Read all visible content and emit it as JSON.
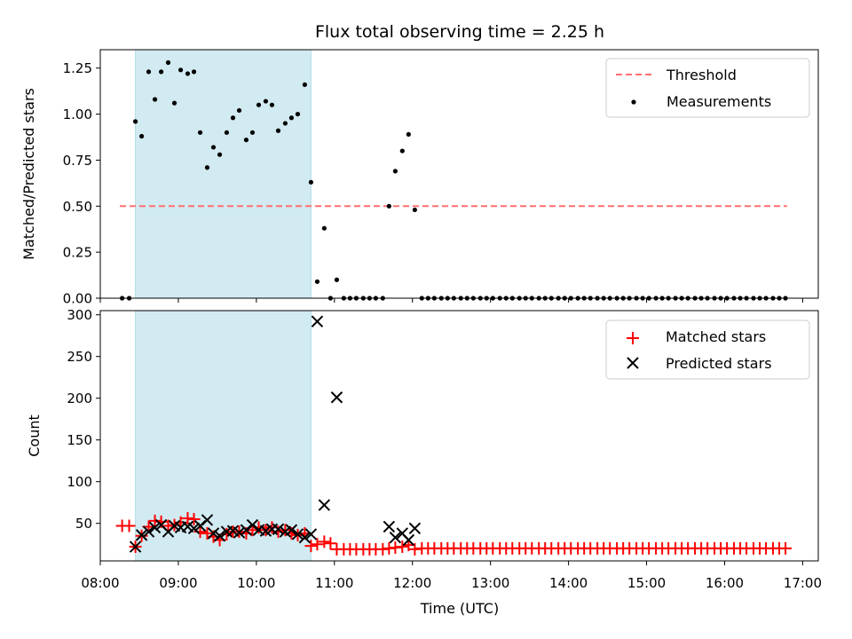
{
  "title": "Flux total observing time = 2.25 h",
  "colors": {
    "threshold": "#ff6f6f",
    "measurement": "#000000",
    "matched": "#ff0000",
    "predicted": "#000000",
    "shade": "#add8e6"
  },
  "chart_data": [
    {
      "type": "scatter",
      "panel": "top",
      "ylabel": "Matched/Predicted stars",
      "xlim": [
        8.0,
        17.2
      ],
      "ylim": [
        0,
        1.35
      ],
      "yticks": [
        0.0,
        0.25,
        0.5,
        0.75,
        1.0,
        1.25
      ],
      "ytick_labels": [
        "0.00",
        "0.25",
        "0.50",
        "0.75",
        "1.00",
        "1.25"
      ],
      "shaded_span": [
        8.45,
        10.7
      ],
      "legend": {
        "position": "top-right",
        "entries": [
          "Threshold",
          "Measurements"
        ]
      },
      "threshold": {
        "name": "Threshold",
        "value": 0.5,
        "x_range": [
          8.25,
          16.8
        ]
      },
      "series": [
        {
          "name": "Measurements",
          "points": [
            [
              8.28,
              0
            ],
            [
              8.37,
              0
            ],
            [
              8.45,
              0.96
            ],
            [
              8.53,
              0.88
            ],
            [
              8.62,
              1.23
            ],
            [
              8.7,
              1.08
            ],
            [
              8.78,
              1.23
            ],
            [
              8.87,
              1.28
            ],
            [
              8.95,
              1.06
            ],
            [
              9.03,
              1.24
            ],
            [
              9.12,
              1.22
            ],
            [
              9.2,
              1.23
            ],
            [
              9.28,
              0.9
            ],
            [
              9.37,
              0.71
            ],
            [
              9.45,
              0.82
            ],
            [
              9.53,
              0.78
            ],
            [
              9.62,
              0.9
            ],
            [
              9.7,
              0.98
            ],
            [
              9.78,
              1.02
            ],
            [
              9.87,
              0.86
            ],
            [
              9.95,
              0.9
            ],
            [
              10.03,
              1.05
            ],
            [
              10.12,
              1.07
            ],
            [
              10.2,
              1.05
            ],
            [
              10.28,
              0.91
            ],
            [
              10.37,
              0.95
            ],
            [
              10.45,
              0.98
            ],
            [
              10.53,
              1.0
            ],
            [
              10.62,
              1.16
            ],
            [
              10.7,
              0.63
            ],
            [
              10.78,
              0.09
            ],
            [
              10.87,
              0.38
            ],
            [
              10.95,
              0
            ],
            [
              11.03,
              0.1
            ],
            [
              11.12,
              0
            ],
            [
              11.2,
              0
            ],
            [
              11.28,
              0
            ],
            [
              11.37,
              0
            ],
            [
              11.45,
              0
            ],
            [
              11.53,
              0
            ],
            [
              11.62,
              0
            ],
            [
              11.7,
              0.5
            ],
            [
              11.78,
              0.69
            ],
            [
              11.87,
              0.8
            ],
            [
              11.95,
              0.89
            ],
            [
              12.03,
              0.48
            ],
            [
              12.12,
              0
            ],
            [
              12.2,
              0
            ],
            [
              12.28,
              0
            ],
            [
              12.37,
              0
            ],
            [
              12.45,
              0
            ],
            [
              12.53,
              0
            ],
            [
              12.62,
              0
            ],
            [
              12.7,
              0
            ],
            [
              12.78,
              0
            ],
            [
              12.87,
              0
            ],
            [
              12.95,
              0
            ],
            [
              13.03,
              0
            ],
            [
              13.12,
              0
            ],
            [
              13.2,
              0
            ],
            [
              13.28,
              0
            ],
            [
              13.37,
              0
            ],
            [
              13.45,
              0
            ],
            [
              13.53,
              0
            ],
            [
              13.62,
              0
            ],
            [
              13.7,
              0
            ],
            [
              13.78,
              0
            ],
            [
              13.87,
              0
            ],
            [
              13.95,
              0
            ],
            [
              14.03,
              0
            ],
            [
              14.12,
              0
            ],
            [
              14.2,
              0
            ],
            [
              14.28,
              0
            ],
            [
              14.37,
              0
            ],
            [
              14.45,
              0
            ],
            [
              14.53,
              0
            ],
            [
              14.62,
              0
            ],
            [
              14.7,
              0
            ],
            [
              14.78,
              0
            ],
            [
              14.87,
              0
            ],
            [
              14.95,
              0
            ],
            [
              15.03,
              0
            ],
            [
              15.12,
              0
            ],
            [
              15.2,
              0
            ],
            [
              15.28,
              0
            ],
            [
              15.37,
              0
            ],
            [
              15.45,
              0
            ],
            [
              15.53,
              0
            ],
            [
              15.62,
              0
            ],
            [
              15.7,
              0
            ],
            [
              15.78,
              0
            ],
            [
              15.87,
              0
            ],
            [
              15.95,
              0
            ],
            [
              16.03,
              0
            ],
            [
              16.12,
              0
            ],
            [
              16.2,
              0
            ],
            [
              16.28,
              0
            ],
            [
              16.37,
              0
            ],
            [
              16.45,
              0
            ],
            [
              16.53,
              0
            ],
            [
              16.62,
              0
            ],
            [
              16.7,
              0
            ],
            [
              16.78,
              0
            ]
          ]
        }
      ]
    },
    {
      "type": "scatter",
      "panel": "bottom",
      "xlabel": "Time (UTC)",
      "ylabel": "Count",
      "xlim": [
        8.0,
        17.2
      ],
      "ylim": [
        5,
        305
      ],
      "xticks": [
        8,
        9,
        10,
        11,
        12,
        13,
        14,
        15,
        16,
        17
      ],
      "xtick_labels": [
        "08:00",
        "09:00",
        "10:00",
        "11:00",
        "12:00",
        "13:00",
        "14:00",
        "15:00",
        "16:00",
        "17:00"
      ],
      "yticks": [
        50,
        100,
        150,
        200,
        250,
        300
      ],
      "ytick_labels": [
        "50",
        "100",
        "150",
        "200",
        "250",
        "300"
      ],
      "shaded_span": [
        8.45,
        10.7
      ],
      "legend": {
        "position": "top-right",
        "entries": [
          "Matched stars",
          "Predicted stars"
        ]
      },
      "series": [
        {
          "name": "Matched stars",
          "marker": "+",
          "points": [
            [
              8.28,
              47
            ],
            [
              8.37,
              47
            ],
            [
              8.45,
              22
            ],
            [
              8.53,
              35
            ],
            [
              8.62,
              46
            ],
            [
              8.7,
              53
            ],
            [
              8.78,
              52
            ],
            [
              8.87,
              47
            ],
            [
              8.95,
              48
            ],
            [
              9.03,
              51
            ],
            [
              9.12,
              56
            ],
            [
              9.2,
              55
            ],
            [
              9.28,
              40
            ],
            [
              9.37,
              38
            ],
            [
              9.45,
              34
            ],
            [
              9.53,
              30
            ],
            [
              9.62,
              37
            ],
            [
              9.7,
              40
            ],
            [
              9.78,
              40
            ],
            [
              9.87,
              38
            ],
            [
              9.95,
              42
            ],
            [
              10.03,
              45
            ],
            [
              10.12,
              42
            ],
            [
              10.2,
              45
            ],
            [
              10.28,
              40
            ],
            [
              10.37,
              42
            ],
            [
              10.45,
              38
            ],
            [
              10.53,
              36
            ],
            [
              10.62,
              38
            ],
            [
              10.7,
              23
            ],
            [
              10.78,
              25
            ],
            [
              10.87,
              28
            ],
            [
              10.95,
              26
            ],
            [
              11.03,
              19
            ],
            [
              11.12,
              19
            ],
            [
              11.2,
              19
            ],
            [
              11.28,
              19
            ],
            [
              11.37,
              19
            ],
            [
              11.45,
              19
            ],
            [
              11.53,
              19
            ],
            [
              11.62,
              19
            ],
            [
              11.7,
              20
            ],
            [
              11.78,
              21
            ],
            [
              11.87,
              22
            ],
            [
              11.95,
              24
            ],
            [
              12.03,
              19
            ],
            [
              12.12,
              20
            ],
            [
              12.2,
              20
            ],
            [
              12.28,
              20
            ],
            [
              12.37,
              20
            ],
            [
              12.45,
              20
            ],
            [
              12.53,
              20
            ],
            [
              12.62,
              20
            ],
            [
              12.7,
              20
            ],
            [
              12.78,
              20
            ],
            [
              12.87,
              20
            ],
            [
              12.95,
              20
            ],
            [
              13.03,
              20
            ],
            [
              13.12,
              20
            ],
            [
              13.2,
              20
            ],
            [
              13.28,
              20
            ],
            [
              13.37,
              20
            ],
            [
              13.45,
              20
            ],
            [
              13.53,
              20
            ],
            [
              13.62,
              20
            ],
            [
              13.7,
              20
            ],
            [
              13.78,
              20
            ],
            [
              13.87,
              20
            ],
            [
              13.95,
              20
            ],
            [
              14.03,
              20
            ],
            [
              14.12,
              20
            ],
            [
              14.2,
              20
            ],
            [
              14.28,
              20
            ],
            [
              14.37,
              20
            ],
            [
              14.45,
              20
            ],
            [
              14.53,
              20
            ],
            [
              14.62,
              20
            ],
            [
              14.7,
              20
            ],
            [
              14.78,
              20
            ],
            [
              14.87,
              20
            ],
            [
              14.95,
              20
            ],
            [
              15.03,
              20
            ],
            [
              15.12,
              20
            ],
            [
              15.2,
              20
            ],
            [
              15.28,
              20
            ],
            [
              15.37,
              20
            ],
            [
              15.45,
              20
            ],
            [
              15.53,
              20
            ],
            [
              15.62,
              20
            ],
            [
              15.7,
              20
            ],
            [
              15.78,
              20
            ],
            [
              15.87,
              20
            ],
            [
              15.95,
              20
            ],
            [
              16.03,
              20
            ],
            [
              16.12,
              20
            ],
            [
              16.2,
              20
            ],
            [
              16.28,
              20
            ],
            [
              16.37,
              20
            ],
            [
              16.45,
              20
            ],
            [
              16.53,
              20
            ],
            [
              16.62,
              20
            ],
            [
              16.7,
              20
            ],
            [
              16.78,
              20
            ]
          ]
        },
        {
          "name": "Predicted stars",
          "marker": "x",
          "points": [
            [
              8.45,
              22
            ],
            [
              8.53,
              36
            ],
            [
              8.62,
              40
            ],
            [
              8.7,
              45
            ],
            [
              8.78,
              48
            ],
            [
              8.87,
              40
            ],
            [
              8.95,
              47
            ],
            [
              9.03,
              45
            ],
            [
              9.12,
              46
            ],
            [
              9.2,
              44
            ],
            [
              9.28,
              47
            ],
            [
              9.37,
              54
            ],
            [
              9.45,
              38
            ],
            [
              9.53,
              35
            ],
            [
              9.62,
              40
            ],
            [
              9.7,
              41
            ],
            [
              9.78,
              39
            ],
            [
              9.87,
              42
            ],
            [
              9.95,
              48
            ],
            [
              10.03,
              42
            ],
            [
              10.12,
              41
            ],
            [
              10.2,
              43
            ],
            [
              10.28,
              43
            ],
            [
              10.37,
              40
            ],
            [
              10.45,
              42
            ],
            [
              10.53,
              37
            ],
            [
              10.62,
              33
            ],
            [
              10.7,
              37
            ],
            [
              10.78,
              292
            ],
            [
              10.87,
              72
            ],
            [
              11.03,
              201
            ],
            [
              11.7,
              46
            ],
            [
              11.78,
              33
            ],
            [
              11.87,
              38
            ],
            [
              11.95,
              30
            ],
            [
              12.03,
              44
            ]
          ]
        }
      ]
    }
  ]
}
